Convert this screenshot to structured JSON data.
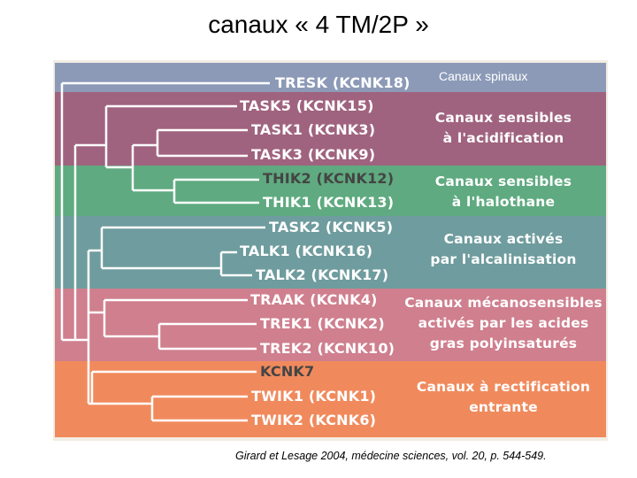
{
  "title": "canaux « 4 TM/2P »",
  "spinal_label": "Canaux spinaux",
  "leaves": [
    "TRESK (KCNK18)",
    "TASK5 (KCNK15)",
    "TASK1 (KCNK3)",
    "TASK3 (KCNK9)",
    "THIK2 (KCNK12)",
    "THIK1 (KCNK13)",
    "TASK2 (KCNK5)",
    "TALK1 (KCNK16)",
    "TALK2 (KCNK17)",
    "TRAAK (KCNK4)",
    "TREK1 (KCNK2)",
    "TREK2 (KCNK10)",
    "KCNK7",
    "TWIK1 (KCNK1)",
    "TWIK2 (KCNK6)"
  ],
  "categories": [
    "Canaux sensibles\nà l'acidification",
    "Canaux sensibles\nà l'halothane",
    "Canaux activés\npar l'alcalinisation",
    "Canaux mécanosensibles\nactivés par les acides\ngras polyinsaturés",
    "Canaux à rectification\nentrante"
  ],
  "colors": {
    "tresk": "#8c9ab8",
    "acid": "#a0637f",
    "halothane": "#5faa80",
    "alkaline": "#6f9c9e",
    "mechano": "#cf7f8e",
    "rectifier": "#f08a5d",
    "tree_line": "#ffffff",
    "frame": "#f2ede4"
  },
  "citation": "Girard et Lesage 2004, médecine sciences, vol. 20, p. 544-549."
}
